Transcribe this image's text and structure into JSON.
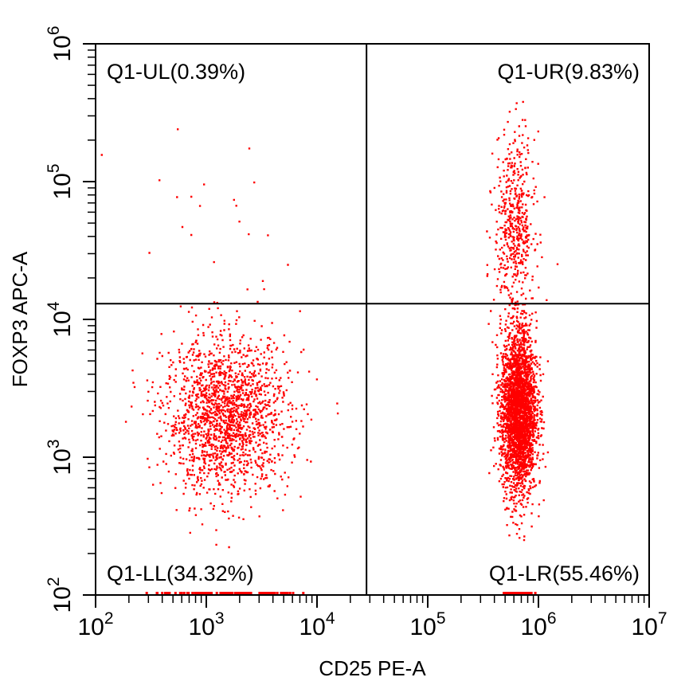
{
  "chart_data": {
    "type": "scatter",
    "title": "",
    "xlabel": "CD25 PE-A",
    "ylabel": "FOXP3 APC-A",
    "x_scale": "log",
    "y_scale": "log",
    "xlim": [
      100,
      10000000
    ],
    "ylim": [
      100,
      1000000
    ],
    "x_ticks": [
      {
        "base": "10",
        "exp": "2",
        "value": 100
      },
      {
        "base": "10",
        "exp": "3",
        "value": 1000
      },
      {
        "base": "10",
        "exp": "4",
        "value": 10000
      },
      {
        "base": "10",
        "exp": "5",
        "value": 100000
      },
      {
        "base": "10",
        "exp": "6",
        "value": 1000000
      },
      {
        "base": "10",
        "exp": "7",
        "value": 10000000
      }
    ],
    "y_ticks": [
      {
        "base": "10",
        "exp": "2",
        "value": 100
      },
      {
        "base": "10",
        "exp": "3",
        "value": 1000
      },
      {
        "base": "10",
        "exp": "4",
        "value": 10000
      },
      {
        "base": "10",
        "exp": "5",
        "value": 100000
      },
      {
        "base": "10",
        "exp": "6",
        "value": 1000000
      }
    ],
    "gate": {
      "x": 28000,
      "y": 13000
    },
    "quadrants": [
      {
        "id": "UL",
        "label": "Q1-UL(0.39%)",
        "percent": 0.39
      },
      {
        "id": "UR",
        "label": "Q1-UR(9.83%)",
        "percent": 9.83
      },
      {
        "id": "LL",
        "label": "Q1-LL(34.32%)",
        "percent": 34.32
      },
      {
        "id": "LR",
        "label": "Q1-LR(55.46%)",
        "percent": 55.46
      }
    ],
    "populations": [
      {
        "x_center": 1500,
        "y_center": 2000,
        "x_spread_decades": 0.28,
        "y_spread_decades": 0.28,
        "share": 0.3432
      },
      {
        "x_center": 650000,
        "y_center": 2200,
        "x_spread_decades": 0.08,
        "y_spread_decades": 0.3,
        "share": 0.5546
      },
      {
        "x_center": 600000,
        "y_center": 50000,
        "x_spread_decades": 0.09,
        "y_spread_decades": 0.32,
        "share": 0.0983
      },
      {
        "x_center": 1500,
        "y_center": 40000,
        "x_spread_decades": 0.5,
        "y_spread_decades": 0.5,
        "share": 0.0039
      }
    ],
    "point_color": "#ff0000",
    "grid": false,
    "legend": "none"
  }
}
